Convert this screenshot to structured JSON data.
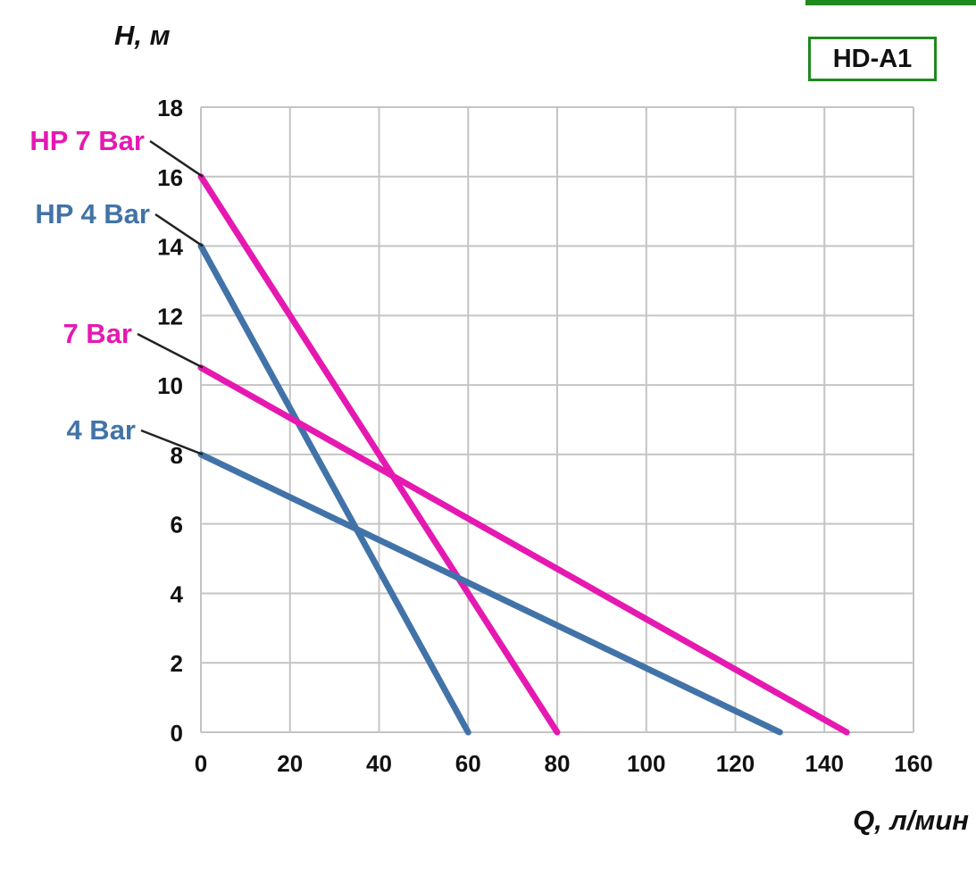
{
  "header": {
    "model": "HD-A1"
  },
  "chart_data": {
    "type": "line",
    "title": "HD-A1",
    "xlabel": "Q, л/мин",
    "ylabel": "H, м",
    "xlim": [
      0,
      160
    ],
    "ylim": [
      0,
      18
    ],
    "x_ticks": [
      0,
      20,
      40,
      60,
      80,
      100,
      120,
      140,
      160
    ],
    "y_ticks": [
      0,
      2,
      4,
      6,
      8,
      10,
      12,
      14,
      16,
      18
    ],
    "grid": true,
    "legend_position": "left-labels",
    "series": [
      {
        "name": "HP 7 Bar",
        "color": "#e519b1",
        "points": [
          [
            0,
            16
          ],
          [
            80,
            0
          ]
        ]
      },
      {
        "name": "HP 4 Bar",
        "color": "#4273a8",
        "points": [
          [
            0,
            14
          ],
          [
            60,
            0
          ]
        ]
      },
      {
        "name": "7 Bar",
        "color": "#e519b1",
        "points": [
          [
            0,
            10.5
          ],
          [
            145,
            0
          ]
        ]
      },
      {
        "name": "4 Bar",
        "color": "#4273a8",
        "points": [
          [
            0,
            8
          ],
          [
            130,
            0
          ]
        ]
      }
    ],
    "colors": {
      "magenta": "#e519b1",
      "blue": "#4273a8",
      "grid": "#c4c4c4",
      "badge_border": "#1e8a1e",
      "text": "#111111"
    }
  }
}
